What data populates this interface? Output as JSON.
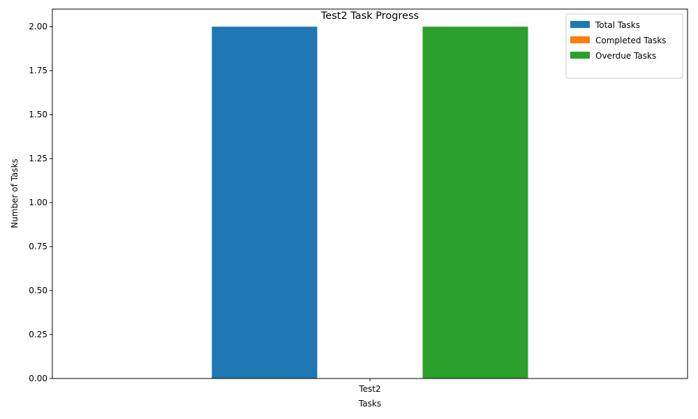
{
  "chart_data": {
    "type": "bar",
    "title": "Test2 Task Progress",
    "xlabel": "Tasks",
    "ylabel": "Number of Tasks",
    "categories": [
      "Test2"
    ],
    "series": [
      {
        "name": "Total Tasks",
        "values": [
          2
        ],
        "color": "#1f77b4"
      },
      {
        "name": "Completed Tasks",
        "values": [
          0
        ],
        "color": "#ff7f0e"
      },
      {
        "name": "Overdue Tasks",
        "values": [
          2
        ],
        "color": "#2ca02c"
      }
    ],
    "ylim": [
      0,
      2.1
    ],
    "yticks": [
      "0.00",
      "0.25",
      "0.50",
      "0.75",
      "1.00",
      "1.25",
      "1.50",
      "1.75",
      "2.00"
    ],
    "grid": false,
    "legend_position": "top-right"
  }
}
